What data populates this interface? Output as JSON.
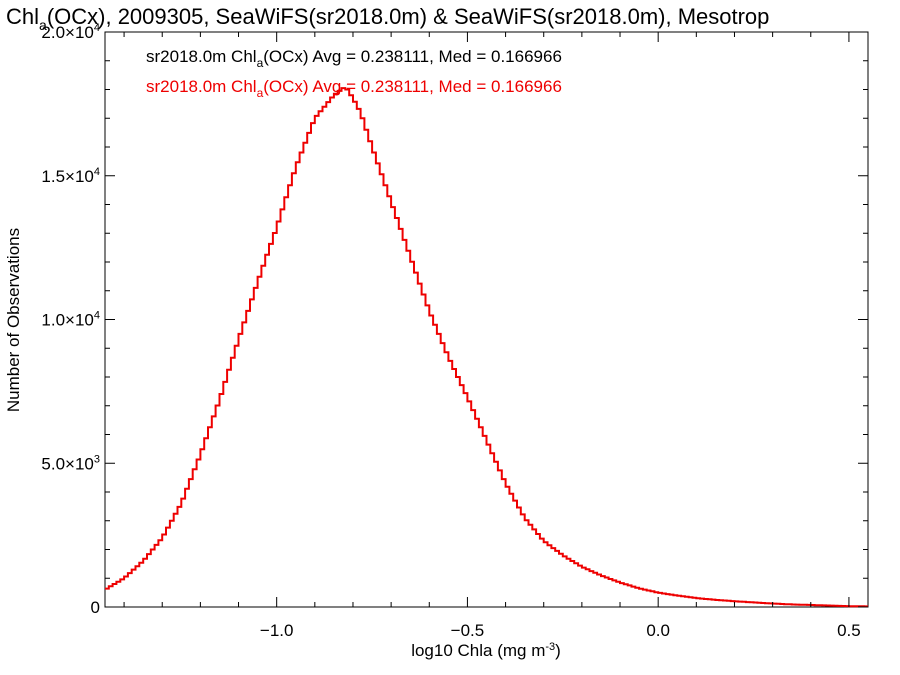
{
  "chart_data": {
    "type": "line",
    "title_parts": {
      "pre": "Chl",
      "sub": "a",
      "post": "(OCx), 2009305, SeaWiFS(sr2018.0m) & SeaWiFS(sr2018.0m), Mesotrop"
    },
    "xlabel_parts": {
      "pre": "log10 Chla (mg m",
      "sup": "-3",
      "post": ")"
    },
    "ylabel": "Number of Observations",
    "xlim": [
      -1.45,
      0.55
    ],
    "ylim": [
      0,
      20000
    ],
    "x_ticks": [
      {
        "value": -1.0,
        "label": "−1.0"
      },
      {
        "value": -0.5,
        "label": "−0.5"
      },
      {
        "value": 0.0,
        "label": "0.0"
      },
      {
        "value": 0.5,
        "label": "0.5"
      }
    ],
    "y_ticks": [
      {
        "value": 0,
        "mant": "0",
        "exp": ""
      },
      {
        "value": 5000,
        "mant": "5.0×10",
        "exp": "3"
      },
      {
        "value": 10000,
        "mant": "1.0×10",
        "exp": "4"
      },
      {
        "value": 15000,
        "mant": "1.5×10",
        "exp": "4"
      },
      {
        "value": 20000,
        "mant": "2.0×10",
        "exp": "4"
      }
    ],
    "legend": [
      {
        "pre": "sr2018.0m Chl",
        "sub": "a",
        "post": "(OCx) Avg = 0.238111, Med = 0.166966",
        "color": "#000000"
      },
      {
        "pre": "sr2018.0m Chl",
        "sub": "a",
        "post": "(OCx) Avg = 0.238111, Med = 0.166966",
        "color": "#ee0000"
      }
    ],
    "series": [
      {
        "color": "#ee0000",
        "x": [
          -1.45,
          -1.4,
          -1.35,
          -1.3,
          -1.25,
          -1.2,
          -1.15,
          -1.1,
          -1.05,
          -1.0,
          -0.95,
          -0.9,
          -0.85,
          -0.82,
          -0.8,
          -0.78,
          -0.75,
          -0.7,
          -0.65,
          -0.6,
          -0.55,
          -0.5,
          -0.45,
          -0.4,
          -0.35,
          -0.3,
          -0.25,
          -0.2,
          -0.15,
          -0.1,
          -0.05,
          0.0,
          0.05,
          0.1,
          0.15,
          0.2,
          0.25,
          0.3,
          0.35,
          0.4,
          0.45,
          0.5,
          0.55
        ],
        "y": [
          600,
          1000,
          1600,
          2400,
          3600,
          5300,
          7200,
          9300,
          11300,
          13200,
          15300,
          17000,
          17800,
          18100,
          17700,
          17200,
          16000,
          14100,
          12200,
          10300,
          8700,
          7300,
          5800,
          4300,
          3100,
          2300,
          1800,
          1400,
          1100,
          850,
          650,
          500,
          400,
          310,
          250,
          200,
          160,
          120,
          90,
          70,
          50,
          30,
          20
        ]
      }
    ]
  }
}
